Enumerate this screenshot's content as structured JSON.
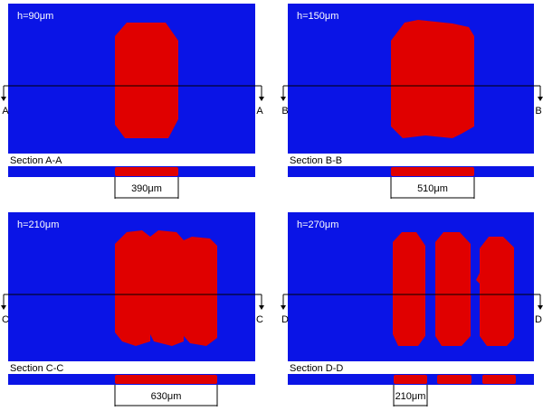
{
  "panels": [
    {
      "height_label": "h=90μm",
      "section_letter": "A",
      "section_label": "Section A-A",
      "dimension": "390μm"
    },
    {
      "height_label": "h=150μm",
      "section_letter": "B",
      "section_label": "Section B-B",
      "dimension": "510μm"
    },
    {
      "height_label": "h=210μm",
      "section_letter": "C",
      "section_label": "Section C-C",
      "dimension": "630μm"
    },
    {
      "height_label": "h=270μm",
      "section_letter": "D",
      "section_label": "Section D-D",
      "dimension": "210μm"
    }
  ]
}
